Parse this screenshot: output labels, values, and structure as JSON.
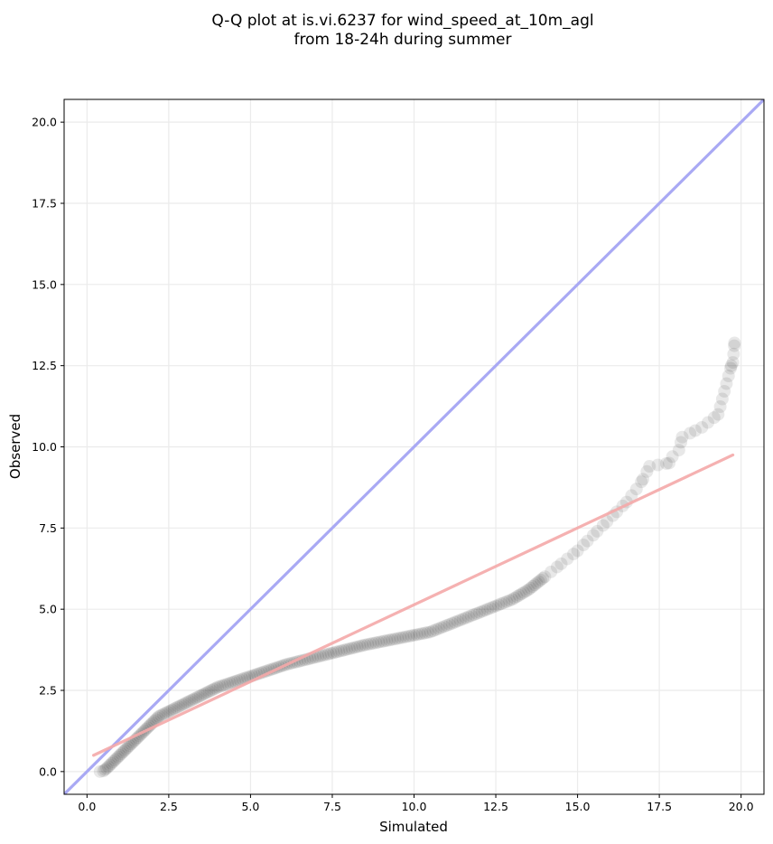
{
  "chart_data": {
    "type": "scatter",
    "title_line1": "Q-Q plot at is.vi.6237 for wind_speed_at_10m_agl",
    "title_line2": "from 18-24h during summer",
    "xlabel": "Simulated",
    "ylabel": "Observed",
    "xlim": [
      -0.7,
      20.7
    ],
    "ylim": [
      -0.7,
      20.7
    ],
    "xticks": [
      0.0,
      2.5,
      5.0,
      7.5,
      10.0,
      12.5,
      15.0,
      17.5,
      20.0
    ],
    "yticks": [
      0.0,
      2.5,
      5.0,
      7.5,
      10.0,
      12.5,
      15.0,
      17.5,
      20.0
    ],
    "xtick_labels": [
      "0.0",
      "2.5",
      "5.0",
      "7.5",
      "10.0",
      "12.5",
      "15.0",
      "17.5",
      "20.0"
    ],
    "ytick_labels": [
      "0.0",
      "2.5",
      "5.0",
      "7.5",
      "10.0",
      "12.5",
      "15.0",
      "17.5",
      "20.0"
    ],
    "grid": true,
    "identity_line": {
      "color": "#a9a9f4",
      "from": [
        -0.7,
        -0.7
      ],
      "to": [
        20.7,
        20.7
      ]
    },
    "fit_line": {
      "color": "#f4a9a9",
      "from": [
        0.2,
        0.5
      ],
      "to": [
        19.75,
        9.75
      ]
    },
    "point_color": "#000000",
    "points": [
      [
        0.4,
        0.0
      ],
      [
        0.5,
        0.02
      ],
      [
        0.6,
        0.1
      ],
      [
        0.7,
        0.2
      ],
      [
        0.8,
        0.3
      ],
      [
        0.9,
        0.4
      ],
      [
        1.0,
        0.5
      ],
      [
        1.1,
        0.6
      ],
      [
        1.2,
        0.7
      ],
      [
        1.3,
        0.8
      ],
      [
        1.4,
        0.9
      ],
      [
        1.5,
        1.0
      ],
      [
        1.6,
        1.1
      ],
      [
        1.7,
        1.2
      ],
      [
        1.8,
        1.3
      ],
      [
        1.9,
        1.4
      ],
      [
        2.0,
        1.5
      ],
      [
        2.1,
        1.6
      ],
      [
        2.2,
        1.7
      ],
      [
        2.4,
        1.8
      ],
      [
        2.6,
        1.9
      ],
      [
        2.8,
        2.0
      ],
      [
        3.0,
        2.1
      ],
      [
        3.2,
        2.2
      ],
      [
        3.4,
        2.3
      ],
      [
        3.6,
        2.4
      ],
      [
        3.8,
        2.5
      ],
      [
        4.0,
        2.6
      ],
      [
        4.3,
        2.7
      ],
      [
        4.6,
        2.8
      ],
      [
        4.9,
        2.9
      ],
      [
        5.2,
        3.0
      ],
      [
        5.5,
        3.1
      ],
      [
        5.8,
        3.2
      ],
      [
        6.1,
        3.3
      ],
      [
        6.5,
        3.4
      ],
      [
        6.9,
        3.5
      ],
      [
        7.3,
        3.6
      ],
      [
        7.7,
        3.7
      ],
      [
        8.1,
        3.8
      ],
      [
        8.5,
        3.9
      ],
      [
        9.0,
        4.0
      ],
      [
        9.5,
        4.1
      ],
      [
        10.0,
        4.2
      ],
      [
        10.5,
        4.3
      ],
      [
        11.0,
        4.5
      ],
      [
        11.5,
        4.7
      ],
      [
        12.0,
        4.9
      ],
      [
        12.5,
        5.1
      ],
      [
        13.0,
        5.3
      ],
      [
        13.5,
        5.6
      ],
      [
        14.0,
        6.0
      ],
      [
        14.5,
        6.4
      ],
      [
        15.0,
        6.8
      ],
      [
        15.3,
        7.1
      ],
      [
        15.6,
        7.4
      ],
      [
        15.9,
        7.7
      ],
      [
        16.2,
        8.0
      ],
      [
        16.5,
        8.3
      ],
      [
        16.8,
        8.7
      ],
      [
        17.0,
        9.0
      ],
      [
        17.2,
        9.4
      ],
      [
        17.8,
        9.5
      ],
      [
        17.9,
        9.7
      ],
      [
        18.1,
        9.9
      ],
      [
        18.2,
        10.3
      ],
      [
        18.6,
        10.5
      ],
      [
        18.8,
        10.6
      ],
      [
        19.3,
        11.0
      ],
      [
        19.7,
        12.5
      ],
      [
        19.75,
        12.6
      ],
      [
        19.8,
        13.2
      ]
    ]
  }
}
